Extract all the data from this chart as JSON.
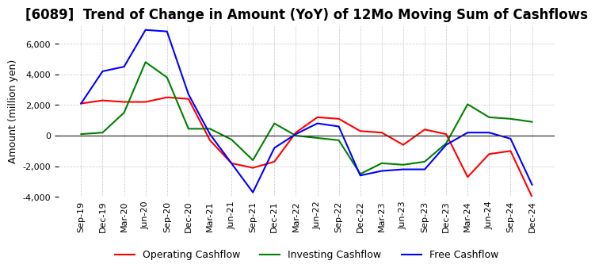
{
  "title": "[6089]  Trend of Change in Amount (YoY) of 12Mo Moving Sum of Cashflows",
  "ylabel": "Amount (million yen)",
  "xlim_labels": [
    "Sep-19",
    "Dec-19",
    "Mar-20",
    "Jun-20",
    "Sep-20",
    "Dec-20",
    "Mar-21",
    "Jun-21",
    "Sep-21",
    "Dec-21",
    "Mar-22",
    "Jun-22",
    "Sep-22",
    "Dec-22",
    "Mar-23",
    "Jun-23",
    "Sep-23",
    "Dec-23",
    "Mar-24",
    "Jun-24",
    "Sep-24",
    "Dec-24"
  ],
  "operating": [
    2100,
    2300,
    2200,
    2200,
    2500,
    2400,
    -300,
    -1800,
    -2100,
    -1700,
    200,
    1200,
    1100,
    300,
    200,
    -600,
    400,
    100,
    -2700,
    -1200,
    -1000,
    -4000
  ],
  "investing": [
    100,
    200,
    1500,
    4800,
    3800,
    450,
    450,
    -250,
    -1600,
    800,
    0,
    -150,
    -300,
    -2500,
    -1800,
    -1900,
    -1700,
    -500,
    2050,
    1200,
    1100,
    900
  ],
  "free": [
    2100,
    4200,
    4500,
    6900,
    6800,
    2700,
    100,
    -1800,
    -3700,
    -800,
    100,
    800,
    600,
    -2600,
    -2300,
    -2200,
    -2200,
    -600,
    200,
    200,
    -200,
    -3200
  ],
  "ylim": [
    -4000,
    7200
  ],
  "yticks": [
    -4000,
    -2000,
    0,
    2000,
    4000,
    6000
  ],
  "operating_color": "#ff0000",
  "investing_color": "#008000",
  "free_color": "#0000ff",
  "bg_color": "#ffffff",
  "grid_color": "#aaaaaa",
  "zero_line_color": "#333333",
  "title_fontsize": 12,
  "label_fontsize": 9,
  "tick_fontsize": 8
}
